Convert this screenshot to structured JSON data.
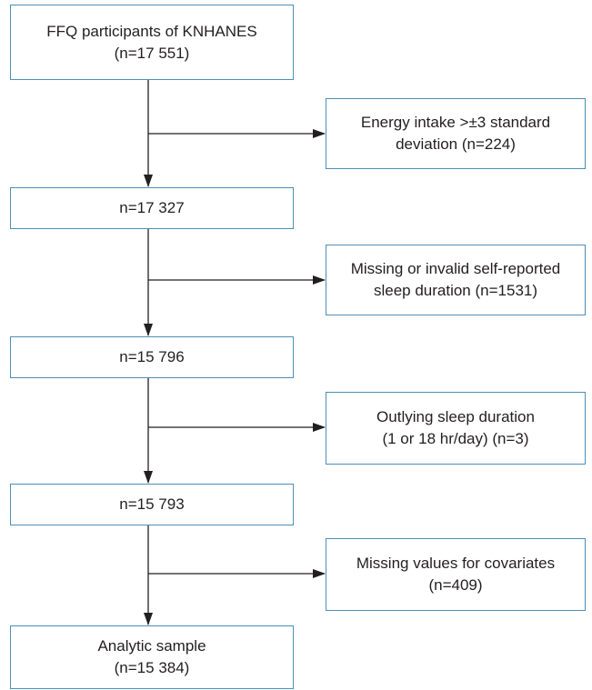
{
  "flowchart": {
    "main_boxes": [
      {
        "line1": "FFQ participants of KNHANES",
        "line2": "(n=17 551)"
      },
      {
        "line1": "n=17 327"
      },
      {
        "line1": "n=15 796"
      },
      {
        "line1": "n=15 793"
      },
      {
        "line1": "Analytic sample",
        "line2": "(n=15 384)"
      }
    ],
    "exclusions": [
      {
        "line1": "Energy intake >±3 standard",
        "line2": "deviation (n=224)"
      },
      {
        "line1": "Missing or invalid self-reported",
        "line2": "sleep duration (n=1531)"
      },
      {
        "line1": "Outlying sleep duration",
        "line2": "(1 or 18 hr/day) (n=3)"
      },
      {
        "line1": "Missing values for covariates",
        "line2": "(n=409)"
      }
    ],
    "colors": {
      "box_border": "#4a90b8",
      "arrow": "#231f20",
      "text": "#231f20"
    }
  }
}
